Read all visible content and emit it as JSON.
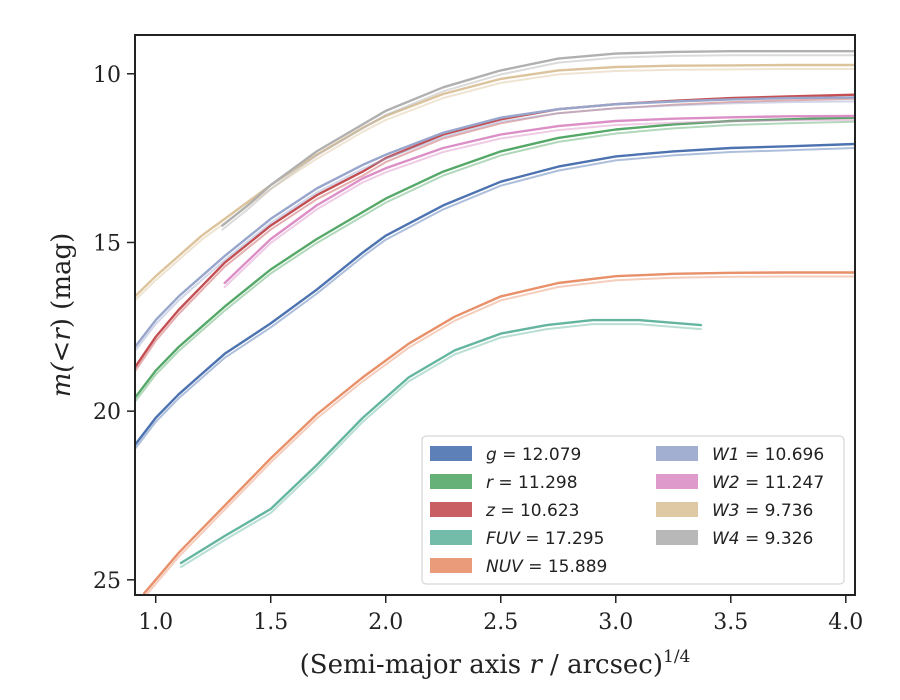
{
  "chart_data": {
    "type": "line",
    "xlabel_prefix": "(Semi-major axis ",
    "xlabel_var": "r",
    "xlabel_suffix": " / arcsec)",
    "xlabel_exp": "1/4",
    "ylabel_prefix": "m(<",
    "ylabel_var": "r",
    "ylabel_suffix": ") (mag)",
    "xlim": [
      0.91,
      4.04
    ],
    "ylim": [
      25.45,
      8.85
    ],
    "y_inverted": true,
    "xticks": [
      1.0,
      1.5,
      2.0,
      2.5,
      3.0,
      3.5,
      4.0
    ],
    "xtick_labels": [
      "1.0",
      "1.5",
      "2.0",
      "2.5",
      "3.0",
      "3.5",
      "4.0"
    ],
    "yticks": [
      10,
      15,
      20,
      25
    ],
    "ytick_labels": [
      "10",
      "15",
      "20",
      "25"
    ],
    "grid": false,
    "legend_position": "lower-right",
    "legend_columns": 2,
    "series": [
      {
        "name": "g",
        "label_value": "12.079",
        "color": "#4c72b0",
        "x": [
          0.91,
          1.0,
          1.1,
          1.2,
          1.3,
          1.5,
          1.7,
          1.9,
          2.0,
          2.25,
          2.5,
          2.75,
          3.0,
          3.25,
          3.5,
          3.75,
          4.04
        ],
        "y": [
          21.0,
          20.2,
          19.5,
          18.9,
          18.3,
          17.4,
          16.4,
          15.3,
          14.8,
          13.9,
          13.2,
          12.75,
          12.45,
          12.3,
          12.2,
          12.15,
          12.08
        ]
      },
      {
        "name": "r",
        "label_value": "11.298",
        "color": "#55a868",
        "x": [
          0.91,
          1.0,
          1.1,
          1.2,
          1.3,
          1.5,
          1.7,
          1.9,
          2.0,
          2.25,
          2.5,
          2.75,
          3.0,
          3.25,
          3.5,
          3.75,
          4.04
        ],
        "y": [
          19.6,
          18.8,
          18.1,
          17.5,
          16.9,
          15.8,
          14.9,
          14.1,
          13.7,
          12.9,
          12.3,
          11.9,
          11.65,
          11.5,
          11.4,
          11.35,
          11.3
        ]
      },
      {
        "name": "z",
        "label_value": "10.623",
        "color": "#c44e52",
        "x": [
          0.91,
          1.0,
          1.1,
          1.2,
          1.3,
          1.5,
          1.7,
          1.9,
          2.0,
          2.25,
          2.5,
          2.75,
          3.0,
          3.25,
          3.5,
          3.75,
          4.04
        ],
        "y": [
          18.7,
          17.8,
          17.0,
          16.3,
          15.6,
          14.5,
          13.6,
          12.9,
          12.5,
          11.8,
          11.35,
          11.05,
          10.9,
          10.8,
          10.72,
          10.67,
          10.62
        ]
      },
      {
        "name": "FUV",
        "label_value": "17.295",
        "color": "#64b5a0",
        "x": [
          1.11,
          1.3,
          1.5,
          1.7,
          1.9,
          2.1,
          2.3,
          2.5,
          2.7,
          2.9,
          3.1,
          3.37
        ],
        "y": [
          24.5,
          23.7,
          22.9,
          21.6,
          20.2,
          19.0,
          18.2,
          17.7,
          17.45,
          17.3,
          17.3,
          17.45
        ]
      },
      {
        "name": "NUV",
        "label_value": "15.889",
        "color": "#e8906a",
        "x": [
          0.95,
          1.1,
          1.3,
          1.5,
          1.7,
          1.9,
          2.1,
          2.3,
          2.5,
          2.75,
          3.0,
          3.25,
          3.5,
          3.75,
          4.04
        ],
        "y": [
          25.4,
          24.2,
          22.8,
          21.4,
          20.1,
          19.0,
          18.0,
          17.2,
          16.6,
          16.2,
          16.0,
          15.93,
          15.9,
          15.89,
          15.89
        ]
      },
      {
        "name": "W1",
        "label_value": "10.696",
        "color": "#98a6cc",
        "x": [
          0.91,
          1.0,
          1.1,
          1.2,
          1.3,
          1.5,
          1.7,
          1.9,
          2.0,
          2.25,
          2.5,
          2.75,
          3.0,
          3.25,
          3.5,
          3.75,
          4.04
        ],
        "y": [
          18.1,
          17.3,
          16.6,
          16.0,
          15.4,
          14.3,
          13.4,
          12.7,
          12.4,
          11.75,
          11.3,
          11.05,
          10.9,
          10.82,
          10.76,
          10.72,
          10.7
        ]
      },
      {
        "name": "W2",
        "label_value": "11.247",
        "color": "#dc8fc6",
        "x": [
          1.3,
          1.5,
          1.7,
          1.9,
          2.0,
          2.25,
          2.5,
          2.75,
          3.0,
          3.25,
          3.5,
          3.75,
          4.04
        ],
        "y": [
          16.2,
          14.9,
          13.9,
          13.1,
          12.8,
          12.2,
          11.8,
          11.55,
          11.4,
          11.33,
          11.29,
          11.26,
          11.25
        ]
      },
      {
        "name": "W3",
        "label_value": "9.736",
        "color": "#dcc39b",
        "x": [
          0.91,
          1.0,
          1.1,
          1.2,
          1.3,
          1.5,
          1.7,
          1.9,
          2.0,
          2.25,
          2.5,
          2.75,
          3.0,
          3.25,
          3.5,
          3.75,
          4.04
        ],
        "y": [
          16.6,
          16.0,
          15.4,
          14.8,
          14.3,
          13.3,
          12.4,
          11.6,
          11.25,
          10.6,
          10.15,
          9.9,
          9.8,
          9.76,
          9.75,
          9.74,
          9.74
        ]
      },
      {
        "name": "W4",
        "label_value": "9.326",
        "color": "#b0b0b0",
        "x": [
          1.29,
          1.4,
          1.5,
          1.7,
          1.9,
          2.0,
          2.25,
          2.5,
          2.75,
          3.0,
          3.25,
          3.5,
          3.75,
          4.04
        ],
        "y": [
          14.5,
          13.9,
          13.3,
          12.3,
          11.5,
          11.1,
          10.4,
          9.9,
          9.55,
          9.4,
          9.35,
          9.33,
          9.33,
          9.33
        ]
      }
    ]
  }
}
